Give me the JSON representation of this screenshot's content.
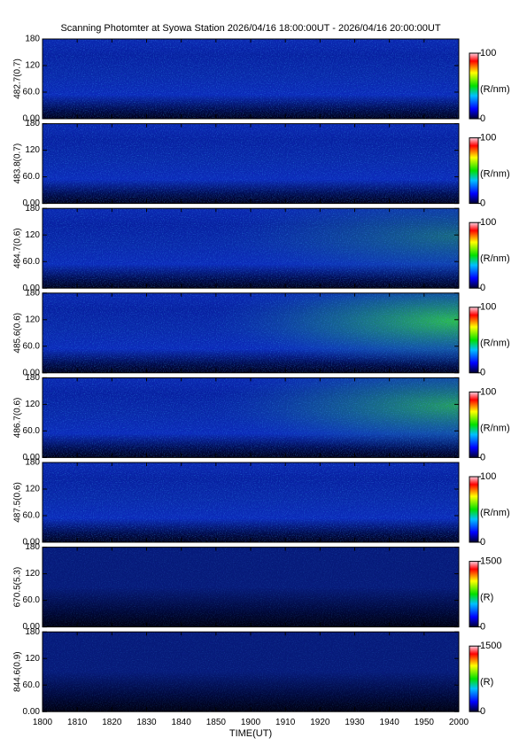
{
  "chart_data": {
    "type": "heatmap",
    "title": "Scanning Photomter at Syowa Station 2026/04/16 18:00:00UT - 2026/04/16 20:00:00UT",
    "x_label": "TIME(UT)",
    "x_tick_labels": [
      "1800",
      "1810",
      "1820",
      "1830",
      "1840",
      "1850",
      "1900",
      "1910",
      "1920",
      "1930",
      "1940",
      "1950",
      "2000"
    ],
    "panels": [
      {
        "y_label": "482.7(0.7)",
        "ylim": [
          0,
          180
        ],
        "yticks": [
          {
            "value": 0,
            "label": "0.00"
          },
          {
            "value": 60,
            "label": "60.0"
          },
          120,
          180
        ],
        "colorbar": {
          "lim": [
            0,
            100
          ],
          "ticks": [
            0,
            100
          ],
          "label": "(R/nm)"
        }
      },
      {
        "y_label": "483.8(0.7)",
        "ylim": [
          0,
          180
        ],
        "yticks": [
          {
            "value": 0,
            "label": "0.00"
          },
          {
            "value": 60,
            "label": "60.0"
          },
          120,
          180
        ],
        "colorbar": {
          "lim": [
            0,
            100
          ],
          "ticks": [
            0,
            100
          ],
          "label": "(R/nm)"
        }
      },
      {
        "y_label": "484.7(0.6)",
        "ylim": [
          0,
          180
        ],
        "yticks": [
          {
            "value": 0,
            "label": "0.00"
          },
          {
            "value": 60,
            "label": "60.0"
          },
          120,
          180
        ],
        "colorbar": {
          "lim": [
            0,
            100
          ],
          "ticks": [
            0,
            100
          ],
          "label": "(R/nm)"
        }
      },
      {
        "y_label": "485.6(0.6)",
        "ylim": [
          0,
          180
        ],
        "yticks": [
          {
            "value": 0,
            "label": "0.00"
          },
          {
            "value": 60,
            "label": "60.0"
          },
          120,
          180
        ],
        "colorbar": {
          "lim": [
            0,
            100
          ],
          "ticks": [
            0,
            100
          ],
          "label": "(R/nm)"
        }
      },
      {
        "y_label": "486.7(0.6)",
        "ylim": [
          0,
          180
        ],
        "yticks": [
          {
            "value": 0,
            "label": "0.00"
          },
          {
            "value": 60,
            "label": "60.0"
          },
          120,
          180
        ],
        "colorbar": {
          "lim": [
            0,
            100
          ],
          "ticks": [
            0,
            100
          ],
          "label": "(R/nm)"
        }
      },
      {
        "y_label": "487.5(0.6)",
        "ylim": [
          0,
          180
        ],
        "yticks": [
          {
            "value": 0,
            "label": "0.00"
          },
          {
            "value": 60,
            "label": "60.0"
          },
          120,
          180
        ],
        "colorbar": {
          "lim": [
            0,
            100
          ],
          "ticks": [
            0,
            100
          ],
          "label": "(R/nm)"
        }
      },
      {
        "y_label": "670.5(5.3)",
        "ylim": [
          0,
          180
        ],
        "yticks": [
          {
            "value": 0,
            "label": "0.00"
          },
          {
            "value": 60,
            "label": "60.0"
          },
          120,
          180
        ],
        "colorbar": {
          "lim": [
            0,
            1500
          ],
          "ticks": [
            0,
            1500
          ],
          "label": "(R)"
        }
      },
      {
        "y_label": "844.6(0.9)",
        "ylim": [
          0,
          180
        ],
        "yticks": [
          {
            "value": 0,
            "label": "0.00"
          },
          {
            "value": 60,
            "label": "60.0"
          },
          120,
          180
        ],
        "colorbar": {
          "lim": [
            0,
            1500
          ],
          "ticks": [
            0,
            1500
          ],
          "label": "(R)"
        }
      }
    ]
  }
}
